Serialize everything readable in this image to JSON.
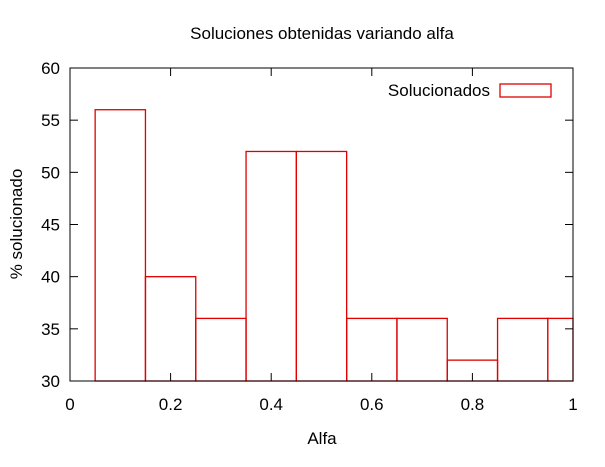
{
  "chart_data": {
    "type": "bar",
    "title": "Soluciones obtenidas variando alfa",
    "xlabel": "Alfa",
    "ylabel": "% solucionado",
    "xlim": [
      0,
      1
    ],
    "ylim": [
      30,
      60
    ],
    "bin_width": 0.1,
    "x_ticks": [
      0,
      0.2,
      0.4,
      0.6,
      0.8,
      1
    ],
    "x_tick_labels": [
      "0",
      "0.2",
      "0.4",
      "0.6",
      "0.8",
      "1"
    ],
    "y_ticks": [
      30,
      35,
      40,
      45,
      50,
      55,
      60
    ],
    "y_tick_labels": [
      "30",
      "35",
      "40",
      "45",
      "50",
      "55",
      "60"
    ],
    "grid": false,
    "legend_position": "top-right",
    "series": [
      {
        "name": "Solucionados",
        "color": "#e00000",
        "x": [
          0.1,
          0.2,
          0.3,
          0.4,
          0.5,
          0.6,
          0.7,
          0.8,
          0.9,
          1.0
        ],
        "values": [
          56,
          40,
          36,
          52,
          52,
          36,
          36,
          32,
          36,
          36
        ]
      }
    ]
  }
}
